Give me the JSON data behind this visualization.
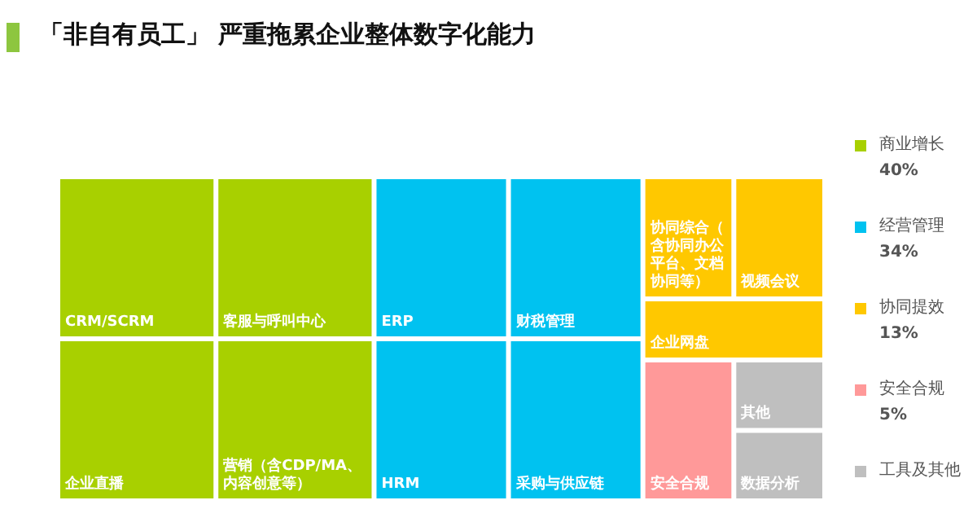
{
  "chart_data": {
    "type": "other",
    "title": "「非自有员工」 严重拖累企业整体数字化能力",
    "categories": [
      "商业增长",
      "经营管理",
      "协同提效",
      "安全合规",
      "工具及其他"
    ],
    "values": [
      40,
      34,
      13,
      5,
      null
    ],
    "value_labels": [
      "40%",
      "34%",
      "13%",
      "5%",
      null
    ],
    "colors": [
      "#a8d000",
      "#00c2f0",
      "#ffc800",
      "#ff9999",
      "#bfbfbf"
    ],
    "annotations": [
      {
        "text": "CRM/SCRM",
        "x": "商业增长"
      },
      {
        "text": "客服与呼叫中心",
        "x": "商业增长"
      },
      {
        "text": "企业直播",
        "x": "商业增长"
      },
      {
        "text": "营销（含CDP/MA、内容创意等）",
        "x": "商业增长"
      },
      {
        "text": "ERP",
        "x": "经营管理"
      },
      {
        "text": "财税管理",
        "x": "经营管理"
      },
      {
        "text": "HRM",
        "x": "经营管理"
      },
      {
        "text": "采购与供应链",
        "x": "经营管理"
      },
      {
        "text": "协同综合（含协同办公平台、文档协同等）",
        "x": "协同提效"
      },
      {
        "text": "视频会议",
        "x": "协同提效"
      },
      {
        "text": "企业网盘",
        "x": "协同提效"
      },
      {
        "text": "安全合规",
        "x": "安全合规"
      },
      {
        "text": "其他",
        "x": "工具及其他"
      },
      {
        "text": "数据分析",
        "x": "工具及其他"
      }
    ]
  }
}
